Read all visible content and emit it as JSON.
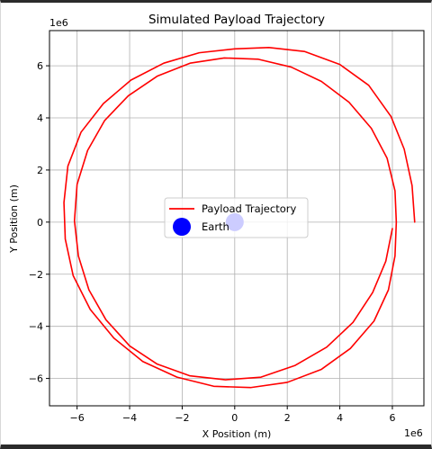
{
  "chart_data": {
    "type": "line",
    "title": "Simulated Payload Trajectory",
    "xlabel": "X Position (m)",
    "ylabel": "Y Position (m)",
    "x_offset_text": "1e6",
    "y_offset_text": "1e6",
    "xlim": [
      -7.05,
      7.2
    ],
    "ylim": [
      -7.05,
      7.35
    ],
    "xticks": [
      -6,
      -4,
      -2,
      0,
      2,
      4,
      6
    ],
    "yticks": [
      -6,
      -4,
      -2,
      0,
      2,
      4,
      6
    ],
    "xtick_labels": [
      "−6",
      "−4",
      "−2",
      "0",
      "2",
      "4",
      "6"
    ],
    "ytick_labels": [
      "−6",
      "−4",
      "−2",
      "0",
      "2",
      "4",
      "6"
    ],
    "grid": true,
    "legend_position": "center",
    "series": [
      {
        "name": "Payload Trajectory",
        "kind": "line",
        "color": "#ff0000",
        "points": [
          [
            6.85,
            0.0
          ],
          [
            6.75,
            1.4
          ],
          [
            6.45,
            2.8
          ],
          [
            5.95,
            4.05
          ],
          [
            5.1,
            5.25
          ],
          [
            4.0,
            6.05
          ],
          [
            2.65,
            6.55
          ],
          [
            1.3,
            6.7
          ],
          [
            0.0,
            6.65
          ],
          [
            -1.35,
            6.5
          ],
          [
            -2.7,
            6.1
          ],
          [
            -3.95,
            5.45
          ],
          [
            -5.0,
            4.55
          ],
          [
            -5.85,
            3.45
          ],
          [
            -6.35,
            2.15
          ],
          [
            -6.5,
            0.75
          ],
          [
            -6.45,
            -0.65
          ],
          [
            -6.15,
            -2.05
          ],
          [
            -5.5,
            -3.35
          ],
          [
            -4.6,
            -4.45
          ],
          [
            -3.5,
            -5.35
          ],
          [
            -2.2,
            -5.95
          ],
          [
            -0.8,
            -6.3
          ],
          [
            0.6,
            -6.35
          ],
          [
            2.0,
            -6.15
          ],
          [
            3.3,
            -5.65
          ],
          [
            4.4,
            -4.85
          ],
          [
            5.3,
            -3.8
          ],
          [
            5.85,
            -2.6
          ],
          [
            6.1,
            -1.3
          ],
          [
            6.15,
            0.0
          ],
          [
            6.1,
            1.2
          ],
          [
            5.8,
            2.45
          ],
          [
            5.2,
            3.6
          ],
          [
            4.35,
            4.6
          ],
          [
            3.3,
            5.4
          ],
          [
            2.15,
            5.95
          ],
          [
            0.9,
            6.25
          ],
          [
            -0.4,
            6.3
          ],
          [
            -1.7,
            6.1
          ],
          [
            -2.95,
            5.6
          ],
          [
            -4.05,
            4.85
          ],
          [
            -4.95,
            3.9
          ],
          [
            -5.6,
            2.75
          ],
          [
            -6.0,
            1.45
          ],
          [
            -6.1,
            0.05
          ],
          [
            -5.95,
            -1.3
          ],
          [
            -5.55,
            -2.6
          ],
          [
            -4.9,
            -3.75
          ],
          [
            -4.0,
            -4.75
          ],
          [
            -2.95,
            -5.45
          ],
          [
            -1.7,
            -5.9
          ],
          [
            -0.35,
            -6.05
          ],
          [
            1.0,
            -5.95
          ],
          [
            2.3,
            -5.5
          ],
          [
            3.5,
            -4.8
          ],
          [
            4.5,
            -3.85
          ],
          [
            5.25,
            -2.7
          ],
          [
            5.75,
            -1.5
          ],
          [
            6.0,
            -0.25
          ]
        ]
      },
      {
        "name": "Earth",
        "kind": "marker",
        "color": "#0000ff",
        "x": 0,
        "y": 0
      }
    ]
  }
}
